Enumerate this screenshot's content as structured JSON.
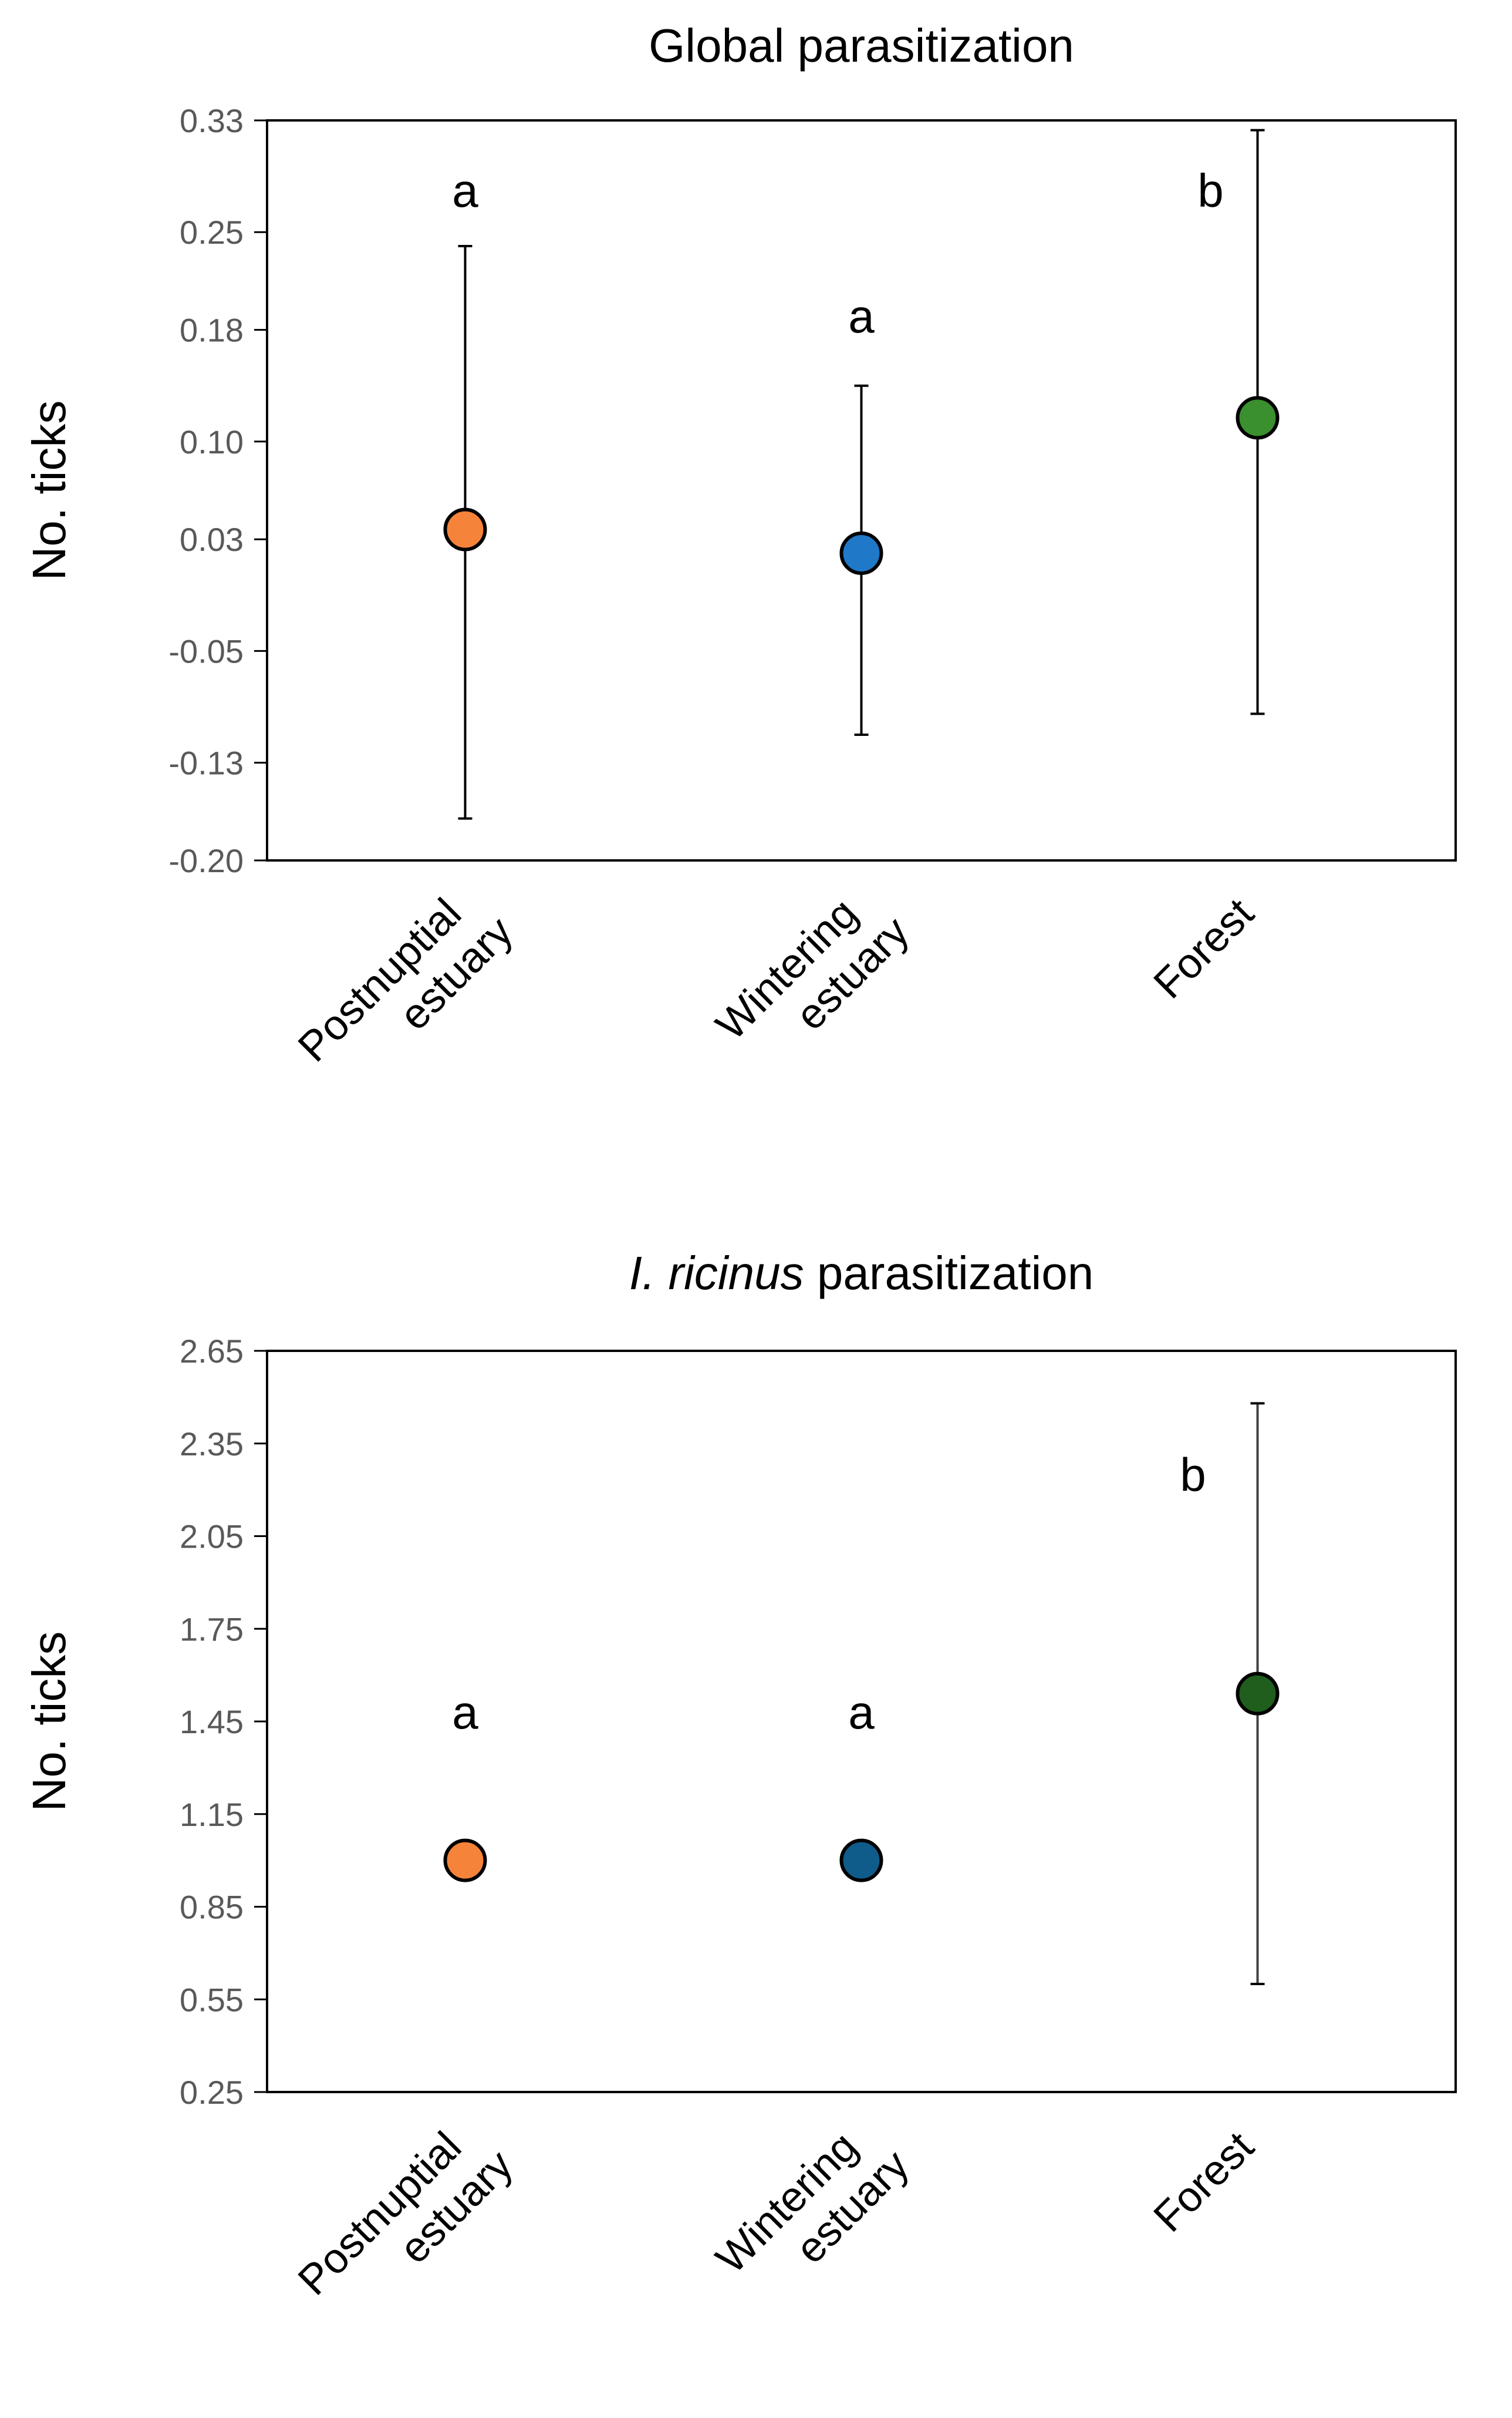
{
  "chart_data": [
    {
      "type": "scatter",
      "title": "Global parasitization",
      "title_italic": "",
      "xlabel": "",
      "ylabel": "No. ticks",
      "ylim": [
        -0.2,
        0.33
      ],
      "yticks": [
        "0.33",
        "0.25",
        "0.18",
        "0.10",
        "0.03",
        "-0.05",
        "-0.13",
        "-0.20"
      ],
      "categories": [
        {
          "line1": "Postnuptial",
          "line2": "estuary"
        },
        {
          "line1": "Wintering",
          "line2": "estuary"
        },
        {
          "line1": "Forest",
          "line2": ""
        }
      ],
      "points": [
        {
          "category": "Postnuptial estuary",
          "mean": 0.037,
          "lower": -0.17,
          "upper": 0.24,
          "letter": "a",
          "letter_at": 0.28,
          "color": "#F5843A"
        },
        {
          "category": "Wintering estuary",
          "mean": 0.02,
          "lower": -0.11,
          "upper": 0.14,
          "letter": "a",
          "letter_at": 0.19,
          "color": "#1F78C8"
        },
        {
          "category": "Forest",
          "mean": 0.117,
          "lower": -0.095,
          "upper": 0.323,
          "letter": "b",
          "letter_at": 0.28,
          "color": "#3A8F2E"
        }
      ]
    },
    {
      "type": "scatter",
      "title": " parasitization",
      "title_italic": "I. ricinus",
      "xlabel": "",
      "ylabel": "No. ticks",
      "ylim": [
        0.25,
        2.65
      ],
      "yticks": [
        "2.65",
        "2.35",
        "2.05",
        "1.75",
        "1.45",
        "1.15",
        "0.85",
        "0.55",
        "0.25"
      ],
      "categories": [
        {
          "line1": "Postnuptial",
          "line2": "estuary"
        },
        {
          "line1": "Wintering",
          "line2": "estuary"
        },
        {
          "line1": "Forest",
          "line2": ""
        }
      ],
      "points": [
        {
          "category": "Postnuptial estuary",
          "mean": 1.0,
          "lower": null,
          "upper": null,
          "letter": "a",
          "letter_at": 1.48,
          "color": "#F5843A"
        },
        {
          "category": "Wintering estuary",
          "mean": 1.0,
          "lower": null,
          "upper": null,
          "letter": "a",
          "letter_at": 1.48,
          "color": "#0F5B8A"
        },
        {
          "category": "Forest",
          "mean": 1.54,
          "lower": 0.6,
          "upper": 2.48,
          "letter": "b",
          "letter_at": 2.25,
          "color": "#1F5E1C"
        }
      ]
    }
  ]
}
